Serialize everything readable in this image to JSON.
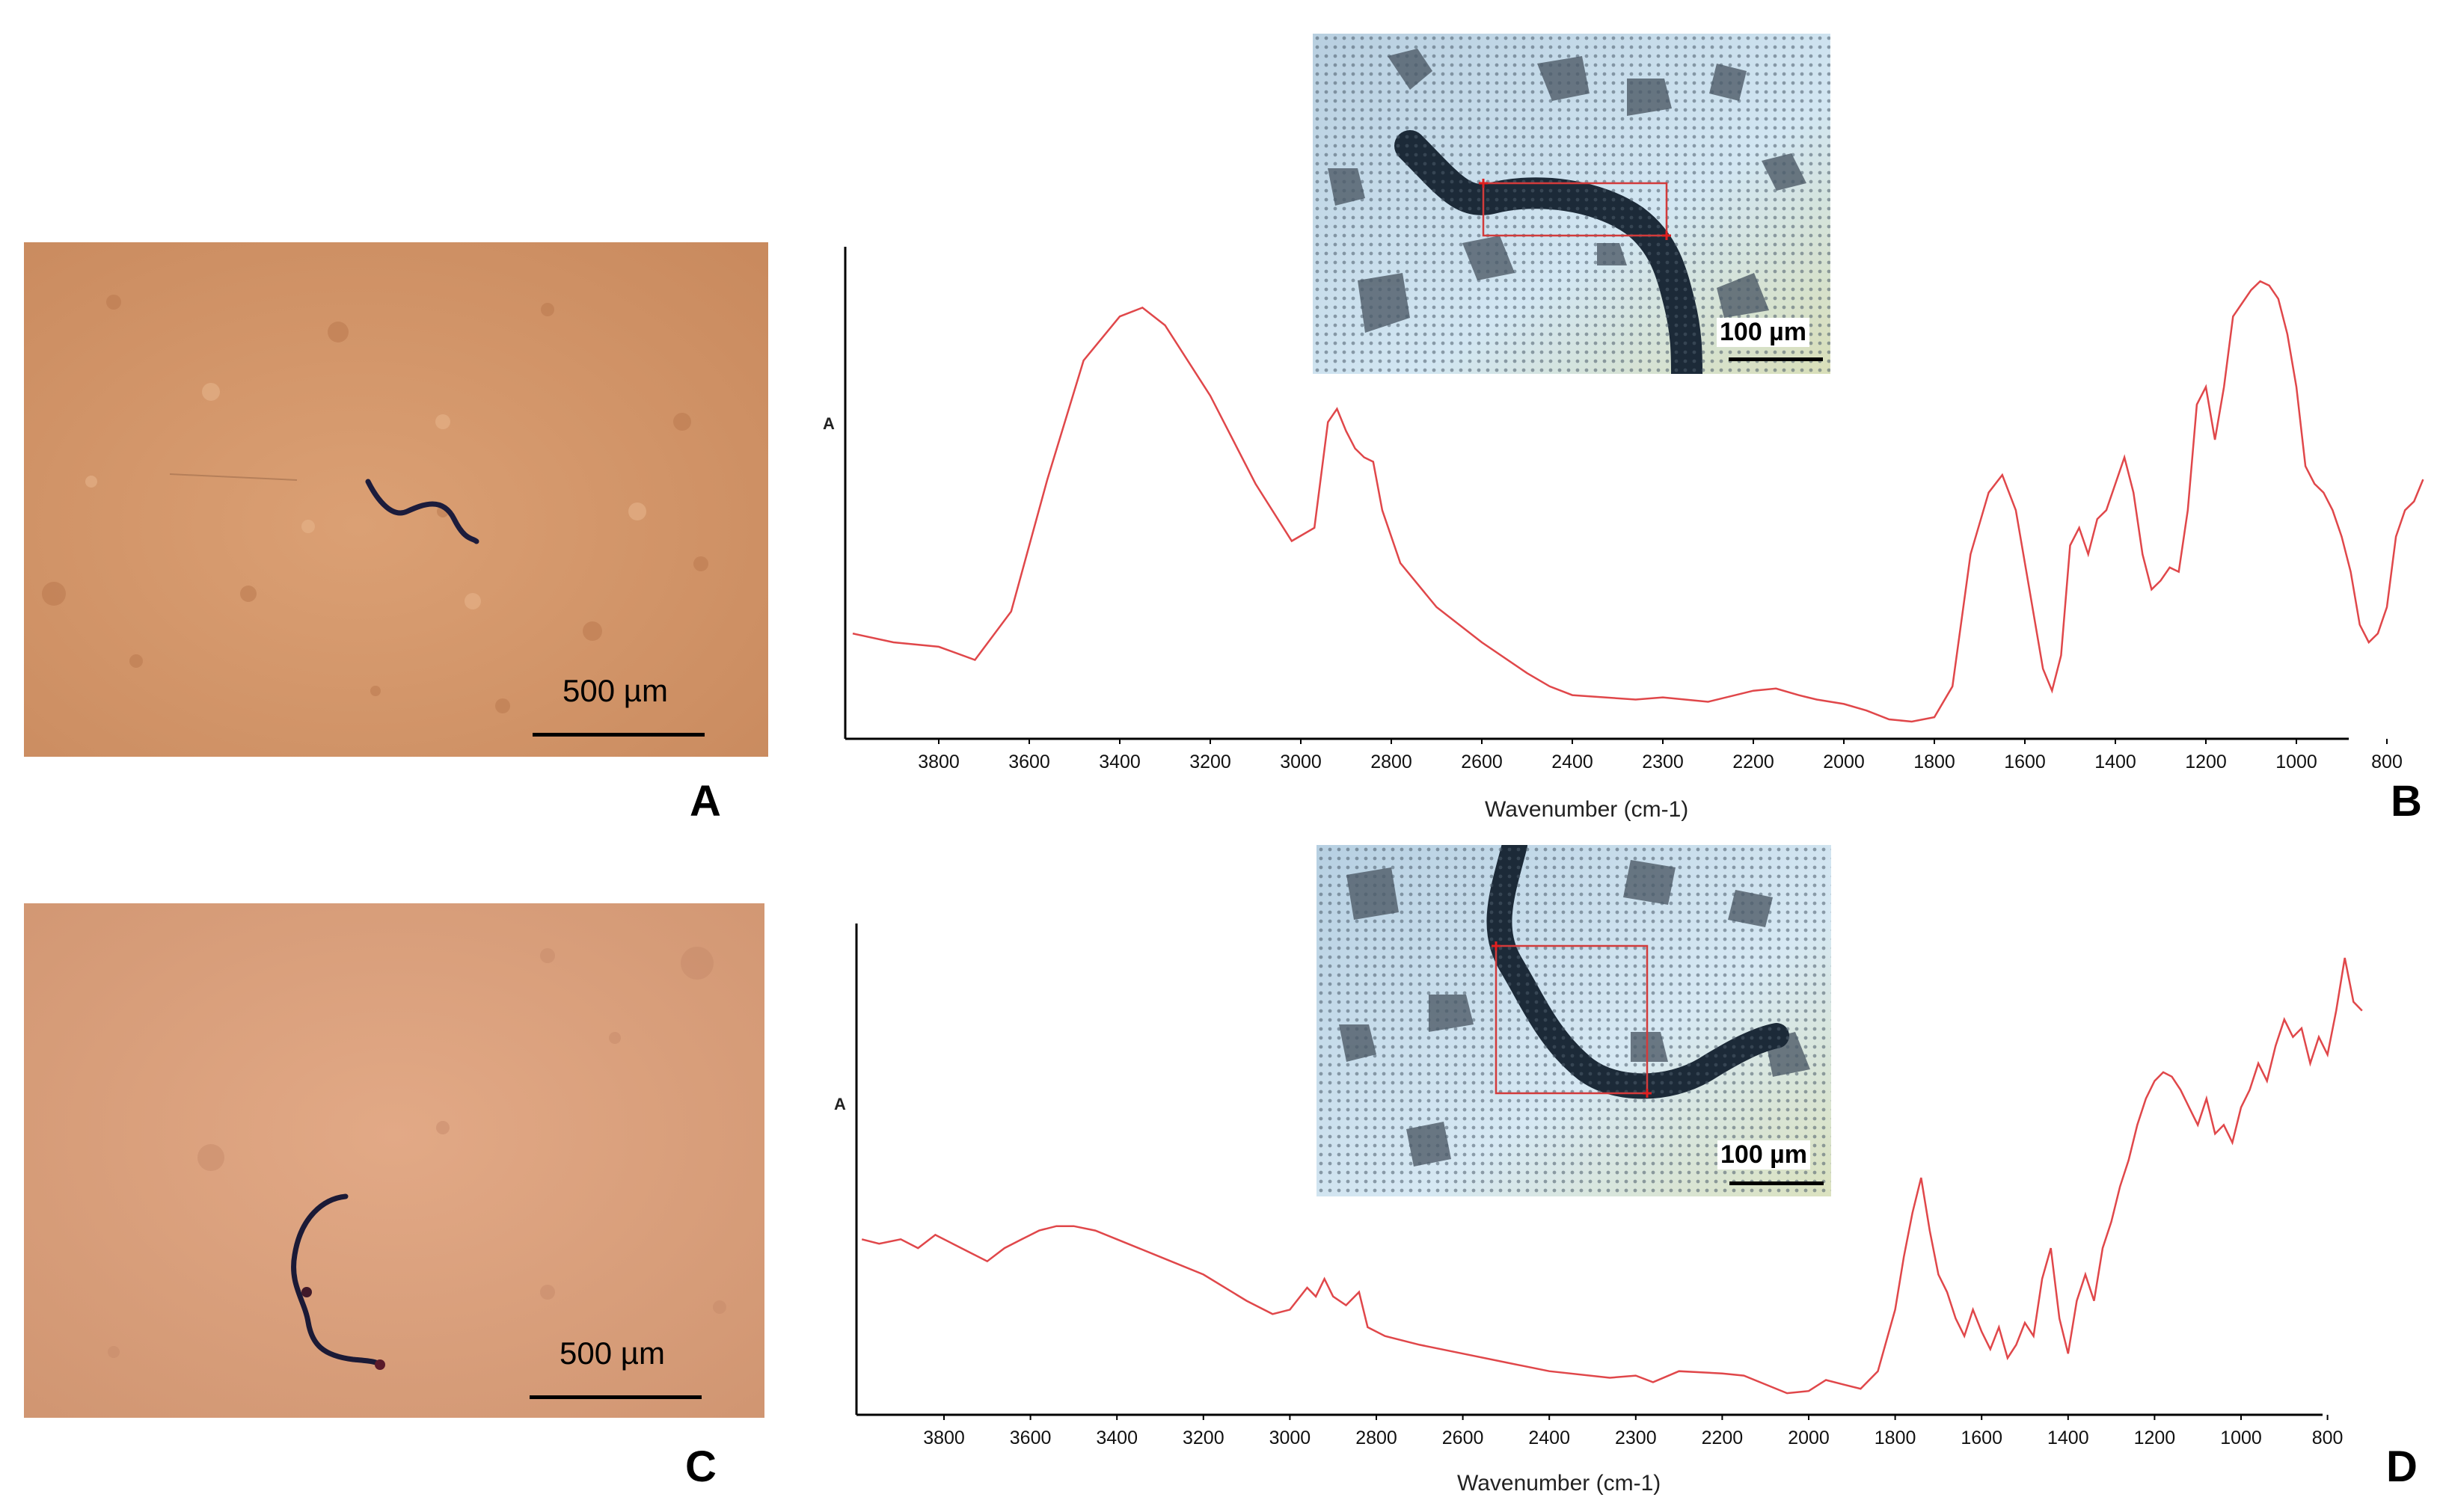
{
  "photos": [
    {
      "letter": "A",
      "scale_label": "500 µm"
    },
    {
      "letter": "C",
      "scale_label": "500 µm"
    }
  ],
  "chart_data": [
    {
      "panel": "B",
      "type": "line",
      "xlabel": "Wavenumber (cm-1)",
      "ylabel": "A",
      "x_ticks": [
        3800,
        3600,
        3400,
        3200,
        3000,
        2800,
        2600,
        2400,
        2300,
        2200,
        2000,
        1800,
        1600,
        1400,
        1200,
        1000,
        800
      ],
      "y_range": [
        0,
        1
      ],
      "grid": false,
      "inset_scale_label": "100 µm",
      "series_color": "#e0474a",
      "series": [
        {
          "points": [
            [
              3990,
              0.2
            ],
            [
              3900,
              0.18
            ],
            [
              3800,
              0.17
            ],
            [
              3720,
              0.14
            ],
            [
              3640,
              0.25
            ],
            [
              3560,
              0.55
            ],
            [
              3480,
              0.82
            ],
            [
              3400,
              0.92
            ],
            [
              3350,
              0.94
            ],
            [
              3300,
              0.9
            ],
            [
              3200,
              0.74
            ],
            [
              3100,
              0.54
            ],
            [
              3020,
              0.41
            ],
            [
              2970,
              0.44
            ],
            [
              2940,
              0.68
            ],
            [
              2920,
              0.71
            ],
            [
              2900,
              0.66
            ],
            [
              2880,
              0.62
            ],
            [
              2860,
              0.6
            ],
            [
              2840,
              0.59
            ],
            [
              2820,
              0.48
            ],
            [
              2780,
              0.36
            ],
            [
              2700,
              0.26
            ],
            [
              2600,
              0.18
            ],
            [
              2500,
              0.11
            ],
            [
              2450,
              0.08
            ],
            [
              2400,
              0.06
            ],
            [
              2330,
              0.05
            ],
            [
              2300,
              0.055
            ],
            [
              2250,
              0.045
            ],
            [
              2200,
              0.07
            ],
            [
              2150,
              0.075
            ],
            [
              2100,
              0.06
            ],
            [
              2060,
              0.05
            ],
            [
              2000,
              0.04
            ],
            [
              1950,
              0.025
            ],
            [
              1900,
              0.005
            ],
            [
              1850,
              0.0
            ],
            [
              1800,
              0.01
            ],
            [
              1760,
              0.08
            ],
            [
              1720,
              0.38
            ],
            [
              1680,
              0.52
            ],
            [
              1650,
              0.56
            ],
            [
              1620,
              0.48
            ],
            [
              1590,
              0.3
            ],
            [
              1560,
              0.12
            ],
            [
              1540,
              0.07
            ],
            [
              1520,
              0.15
            ],
            [
              1500,
              0.4
            ],
            [
              1480,
              0.44
            ],
            [
              1460,
              0.38
            ],
            [
              1440,
              0.46
            ],
            [
              1420,
              0.48
            ],
            [
              1400,
              0.54
            ],
            [
              1380,
              0.6
            ],
            [
              1360,
              0.52
            ],
            [
              1340,
              0.38
            ],
            [
              1320,
              0.3
            ],
            [
              1300,
              0.32
            ],
            [
              1280,
              0.35
            ],
            [
              1260,
              0.34
            ],
            [
              1240,
              0.48
            ],
            [
              1220,
              0.72
            ],
            [
              1200,
              0.76
            ],
            [
              1180,
              0.64
            ],
            [
              1160,
              0.76
            ],
            [
              1140,
              0.92
            ],
            [
              1120,
              0.95
            ],
            [
              1100,
              0.98
            ],
            [
              1080,
              1.0
            ],
            [
              1060,
              0.99
            ],
            [
              1040,
              0.96
            ],
            [
              1020,
              0.88
            ],
            [
              1000,
              0.76
            ],
            [
              980,
              0.58
            ],
            [
              960,
              0.54
            ],
            [
              940,
              0.52
            ],
            [
              920,
              0.48
            ],
            [
              900,
              0.42
            ],
            [
              880,
              0.34
            ],
            [
              860,
              0.22
            ],
            [
              840,
              0.18
            ],
            [
              820,
              0.2
            ],
            [
              800,
              0.26
            ],
            [
              780,
              0.42
            ],
            [
              760,
              0.48
            ],
            [
              740,
              0.5
            ],
            [
              720,
              0.55
            ]
          ]
        }
      ]
    },
    {
      "panel": "D",
      "type": "line",
      "xlabel": "Wavenumber (cm-1)",
      "ylabel": "A",
      "x_ticks": [
        3800,
        3600,
        3400,
        3200,
        3000,
        2800,
        2600,
        2400,
        2300,
        2200,
        2000,
        1800,
        1600,
        1400,
        1200,
        1000,
        800
      ],
      "y_range": [
        0,
        1
      ],
      "grid": false,
      "inset_scale_label": "100 µm",
      "series_color": "#e0474a",
      "series": [
        {
          "points": [
            [
              3990,
              0.36
            ],
            [
              3950,
              0.35
            ],
            [
              3900,
              0.36
            ],
            [
              3860,
              0.34
            ],
            [
              3820,
              0.37
            ],
            [
              3780,
              0.35
            ],
            [
              3740,
              0.33
            ],
            [
              3700,
              0.31
            ],
            [
              3660,
              0.34
            ],
            [
              3620,
              0.36
            ],
            [
              3580,
              0.38
            ],
            [
              3540,
              0.39
            ],
            [
              3500,
              0.39
            ],
            [
              3450,
              0.38
            ],
            [
              3400,
              0.36
            ],
            [
              3300,
              0.32
            ],
            [
              3200,
              0.28
            ],
            [
              3100,
              0.22
            ],
            [
              3040,
              0.19
            ],
            [
              3000,
              0.2
            ],
            [
              2960,
              0.25
            ],
            [
              2940,
              0.23
            ],
            [
              2920,
              0.27
            ],
            [
              2900,
              0.23
            ],
            [
              2870,
              0.21
            ],
            [
              2840,
              0.24
            ],
            [
              2820,
              0.16
            ],
            [
              2780,
              0.14
            ],
            [
              2700,
              0.12
            ],
            [
              2600,
              0.1
            ],
            [
              2500,
              0.08
            ],
            [
              2400,
              0.06
            ],
            [
              2330,
              0.045
            ],
            [
              2300,
              0.05
            ],
            [
              2280,
              0.035
            ],
            [
              2250,
              0.06
            ],
            [
              2200,
              0.055
            ],
            [
              2150,
              0.05
            ],
            [
              2100,
              0.03
            ],
            [
              2050,
              0.01
            ],
            [
              2000,
              0.015
            ],
            [
              1960,
              0.04
            ],
            [
              1920,
              0.03
            ],
            [
              1880,
              0.02
            ],
            [
              1840,
              0.06
            ],
            [
              1800,
              0.2
            ],
            [
              1780,
              0.32
            ],
            [
              1760,
              0.42
            ],
            [
              1740,
              0.5
            ],
            [
              1720,
              0.38
            ],
            [
              1700,
              0.28
            ],
            [
              1680,
              0.24
            ],
            [
              1660,
              0.18
            ],
            [
              1640,
              0.14
            ],
            [
              1620,
              0.2
            ],
            [
              1600,
              0.15
            ],
            [
              1580,
              0.11
            ],
            [
              1560,
              0.16
            ],
            [
              1540,
              0.09
            ],
            [
              1520,
              0.12
            ],
            [
              1500,
              0.17
            ],
            [
              1480,
              0.14
            ],
            [
              1460,
              0.27
            ],
            [
              1440,
              0.34
            ],
            [
              1420,
              0.18
            ],
            [
              1400,
              0.1
            ],
            [
              1380,
              0.22
            ],
            [
              1360,
              0.28
            ],
            [
              1340,
              0.22
            ],
            [
              1320,
              0.34
            ],
            [
              1300,
              0.4
            ],
            [
              1280,
              0.48
            ],
            [
              1260,
              0.54
            ],
            [
              1240,
              0.62
            ],
            [
              1220,
              0.68
            ],
            [
              1200,
              0.72
            ],
            [
              1180,
              0.74
            ],
            [
              1160,
              0.73
            ],
            [
              1140,
              0.7
            ],
            [
              1120,
              0.66
            ],
            [
              1100,
              0.62
            ],
            [
              1080,
              0.68
            ],
            [
              1060,
              0.6
            ],
            [
              1040,
              0.62
            ],
            [
              1020,
              0.58
            ],
            [
              1000,
              0.66
            ],
            [
              980,
              0.7
            ],
            [
              960,
              0.76
            ],
            [
              940,
              0.72
            ],
            [
              920,
              0.8
            ],
            [
              900,
              0.86
            ],
            [
              880,
              0.82
            ],
            [
              860,
              0.84
            ],
            [
              840,
              0.76
            ],
            [
              820,
              0.82
            ],
            [
              800,
              0.78
            ],
            [
              780,
              0.88
            ],
            [
              760,
              1.0
            ],
            [
              750,
              0.95
            ],
            [
              740,
              0.9
            ],
            [
              720,
              0.88
            ]
          ]
        }
      ]
    }
  ]
}
